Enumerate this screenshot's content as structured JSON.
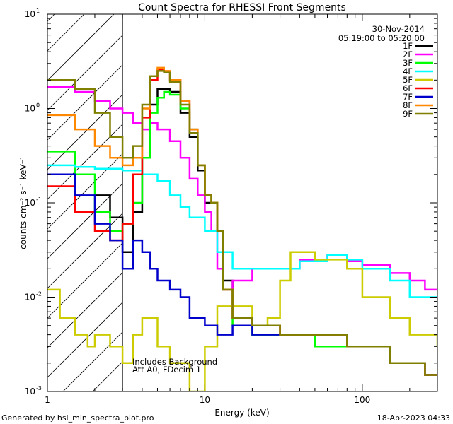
{
  "chart_data": {
    "type": "line",
    "title": "Count Spectra for RHESSI Front Segments",
    "xlabel": "Energy (keV)",
    "ylabel": "counts cm⁻² s⁻¹ keV⁻¹",
    "xscale": "log",
    "yscale": "log",
    "xlim": [
      1,
      300
    ],
    "ylim": [
      0.001,
      10
    ],
    "x_ticks": [
      {
        "value": 1,
        "label": "1"
      },
      {
        "value": 10,
        "label": "10"
      },
      {
        "value": 100,
        "label": "100"
      }
    ],
    "y_ticks": [
      {
        "value": 0.001,
        "mant": "10",
        "exp": "-3"
      },
      {
        "value": 0.01,
        "mant": "10",
        "exp": "-2"
      },
      {
        "value": 0.1,
        "mant": "10",
        "exp": "-1"
      },
      {
        "value": 1,
        "mant": "10",
        "exp": "0"
      },
      {
        "value": 10,
        "mant": "10",
        "exp": "1"
      }
    ],
    "date": "30-Nov-2014",
    "time_range": "05:19:00 to 05:20:00",
    "annotation_lines": [
      "Includes Background",
      "Att A0, FDecim 1"
    ],
    "hatched_region_upper_keV": 3,
    "series": [
      {
        "name": "1F",
        "color": "#000000",
        "x": [
          2.0,
          2.5,
          3.0,
          3.5,
          4.0,
          4.5,
          5.0,
          5.5,
          6.0,
          7.0,
          8.0,
          9.0,
          10.0,
          11.0,
          12.0,
          13.0,
          15.0,
          20.0,
          30.0,
          50.0,
          80.0,
          150.0,
          250.0,
          300.0
        ],
        "y": [
          0.12,
          0.07,
          0.03,
          0.08,
          0.3,
          1.1,
          1.6,
          1.6,
          1.5,
          0.9,
          0.5,
          0.22,
          0.1,
          0.1,
          0.05,
          0.015,
          0.006,
          0.005,
          0.004,
          0.004,
          0.003,
          0.002,
          0.0015,
          0.0015
        ]
      },
      {
        "name": "2F",
        "color": "#ff00ff",
        "x": [
          1.0,
          1.5,
          2.0,
          2.5,
          3.0,
          3.5,
          4.0,
          4.5,
          5.0,
          6.0,
          7.0,
          8.0,
          9.0,
          10.0,
          11.0,
          12.0,
          13.0,
          15.0,
          20.0,
          25.0,
          30.0,
          40.0,
          60.0,
          80.0,
          100.0,
          150.0,
          200.0,
          250.0,
          300.0
        ],
        "y": [
          1.7,
          1.5,
          1.2,
          1.0,
          0.9,
          0.7,
          0.6,
          0.7,
          0.6,
          0.45,
          0.3,
          0.18,
          0.12,
          0.08,
          0.05,
          0.02,
          0.012,
          0.015,
          0.02,
          0.02,
          0.02,
          0.025,
          0.028,
          0.024,
          0.022,
          0.018,
          0.015,
          0.012,
          0.012
        ]
      },
      {
        "name": "3F",
        "color": "#00ff00",
        "x": [
          1.0,
          1.5,
          2.0,
          2.5,
          3.0,
          3.5,
          4.0,
          4.5,
          5.0,
          5.5,
          6.0,
          7.0,
          8.0,
          9.0,
          10.0,
          11.0,
          12.0,
          13.0,
          15.0,
          20.0,
          30.0,
          50.0,
          80.0,
          150.0,
          250.0,
          300.0
        ],
        "y": [
          0.35,
          0.2,
          0.08,
          0.05,
          0.06,
          0.1,
          0.3,
          0.9,
          1.3,
          1.5,
          1.4,
          1.0,
          0.6,
          0.25,
          0.12,
          0.1,
          0.05,
          0.012,
          0.005,
          0.004,
          0.004,
          0.003,
          0.003,
          0.002,
          0.0015,
          0.0015
        ]
      },
      {
        "name": "4F",
        "color": "#00ffff",
        "x": [
          1.0,
          1.5,
          2.0,
          3.0,
          4.0,
          5.0,
          6.0,
          7.0,
          8.0,
          10.0,
          12.0,
          15.0,
          20.0,
          30.0,
          40.0,
          60.0,
          80.0,
          100.0,
          150.0,
          200.0,
          300.0
        ],
        "y": [
          0.25,
          0.24,
          0.23,
          0.22,
          0.2,
          0.17,
          0.12,
          0.09,
          0.07,
          0.05,
          0.03,
          0.02,
          0.02,
          0.02,
          0.024,
          0.028,
          0.025,
          0.02,
          0.015,
          0.01,
          0.01
        ]
      },
      {
        "name": "5F",
        "color": "#cccc00",
        "x": [
          1.0,
          1.2,
          1.5,
          1.8,
          2.0,
          2.5,
          3.0,
          3.5,
          4.0,
          5.0,
          6.0,
          8.0,
          10.0,
          12.0,
          15.0,
          20.0,
          25.0,
          30.0,
          35.0,
          40.0,
          50.0,
          60.0,
          80.0,
          100.0,
          150.0,
          200.0,
          300.0
        ],
        "y": [
          0.012,
          0.006,
          0.004,
          0.003,
          0.004,
          0.003,
          0.002,
          0.004,
          0.006,
          0.003,
          0.002,
          0.001,
          0.003,
          0.008,
          0.008,
          0.005,
          0.006,
          0.015,
          0.03,
          0.03,
          0.025,
          0.025,
          0.02,
          0.01,
          0.006,
          0.004,
          0.003
        ]
      },
      {
        "name": "6F",
        "color": "#ff0000",
        "x": [
          1.0,
          1.5,
          2.0,
          2.5,
          3.0,
          3.5,
          4.0,
          4.5,
          5.0,
          5.5,
          6.0,
          7.0,
          8.0,
          9.0,
          10.0,
          11.0,
          12.0,
          13.0,
          15.0,
          20.0,
          30.0,
          50.0,
          80.0,
          150.0,
          250.0,
          300.0
        ],
        "y": [
          0.15,
          0.08,
          0.05,
          0.04,
          0.06,
          0.2,
          0.8,
          2.0,
          2.6,
          2.4,
          2.0,
          1.2,
          0.6,
          0.25,
          0.12,
          0.1,
          0.05,
          0.012,
          0.006,
          0.005,
          0.004,
          0.004,
          0.003,
          0.002,
          0.0015,
          0.0015
        ]
      },
      {
        "name": "7F",
        "color": "#0000cc",
        "x": [
          1.0,
          1.5,
          2.0,
          2.5,
          3.0,
          3.5,
          4.0,
          4.5,
          5.0,
          6.0,
          7.0,
          8.0,
          10.0,
          12.0,
          15.0,
          20.0,
          30.0,
          50.0,
          80.0,
          150.0,
          250.0,
          300.0
        ],
        "y": [
          0.2,
          0.12,
          0.06,
          0.04,
          0.02,
          0.04,
          0.03,
          0.02,
          0.015,
          0.012,
          0.01,
          0.006,
          0.005,
          0.004,
          0.005,
          0.004,
          0.004,
          0.004,
          0.003,
          0.002,
          0.0015,
          0.0015
        ]
      },
      {
        "name": "8F",
        "color": "#ff8800",
        "x": [
          1.0,
          1.5,
          2.0,
          2.5,
          3.0,
          3.5,
          4.0,
          4.5,
          5.0,
          5.5,
          6.0,
          7.0,
          8.0,
          9.0,
          10.0,
          11.0,
          12.0,
          13.0,
          15.0,
          20.0,
          30.0,
          50.0,
          80.0,
          150.0,
          250.0,
          300.0
        ],
        "y": [
          0.85,
          0.6,
          0.4,
          0.3,
          0.25,
          0.3,
          1.0,
          2.2,
          2.7,
          2.5,
          2.0,
          1.2,
          0.6,
          0.25,
          0.12,
          0.1,
          0.05,
          0.012,
          0.006,
          0.005,
          0.004,
          0.004,
          0.003,
          0.002,
          0.0015,
          0.0015
        ]
      },
      {
        "name": "9F",
        "color": "#808000",
        "x": [
          1.0,
          1.5,
          2.0,
          2.5,
          3.0,
          3.5,
          4.0,
          4.5,
          5.0,
          5.5,
          6.0,
          7.0,
          8.0,
          9.0,
          10.0,
          11.0,
          12.0,
          13.0,
          15.0,
          20.0,
          30.0,
          50.0,
          80.0,
          150.0,
          250.0,
          300.0
        ],
        "y": [
          2.0,
          1.6,
          0.9,
          0.5,
          0.3,
          0.4,
          1.1,
          2.2,
          2.5,
          2.4,
          1.9,
          1.1,
          0.55,
          0.25,
          0.12,
          0.1,
          0.05,
          0.012,
          0.006,
          0.005,
          0.004,
          0.004,
          0.003,
          0.002,
          0.0015,
          0.0015
        ]
      }
    ]
  },
  "footer": {
    "generated_by": "Generated by hsi_min_spectra_plot.pro",
    "timestamp": "18-Apr-2023 04:33"
  }
}
